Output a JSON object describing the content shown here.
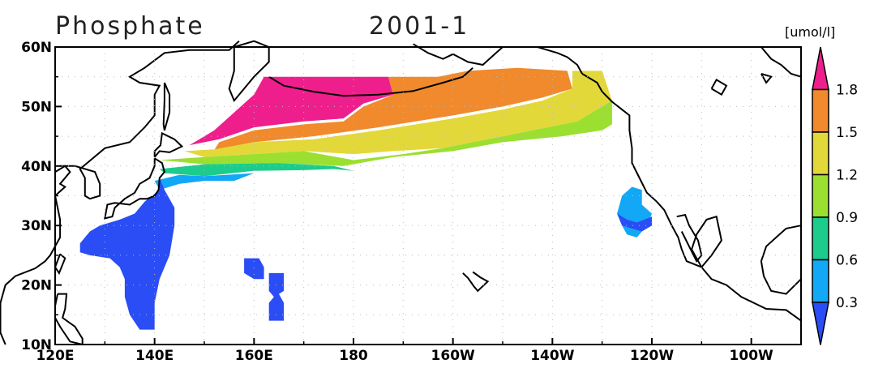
{
  "title": "Phosphate",
  "date": "2001-1",
  "units": "[umol/l]",
  "chart_data": {
    "type": "heatmap",
    "x_ticks": [
      "120E",
      "140E",
      "160E",
      "180",
      "160W",
      "140W",
      "120W",
      "100W"
    ],
    "y_ticks": [
      "10N",
      "20N",
      "30N",
      "40N",
      "50N",
      "60N"
    ],
    "x_range_lon_east": [
      120,
      270
    ],
    "y_range_lat": [
      10,
      60
    ],
    "grid": "dotted",
    "legend_position": "right",
    "colorbar": {
      "labels": [
        "0.3",
        "0.6",
        "0.9",
        "1.2",
        "1.5",
        "1.8"
      ],
      "colors": [
        "#2a4df5",
        "#12a8f5",
        "#1ccc8c",
        "#9bdf30",
        "#e3d83a",
        "#f08a2c",
        "#ee1f8c"
      ]
    },
    "regions": [
      {
        "value": "<0.3",
        "color": "#2a4df5",
        "lat": [
          12,
          38
        ],
        "lon": [
          125,
          141
        ]
      },
      {
        "value": "<0.3",
        "color": "#2a4df5",
        "lat": [
          14,
          22
        ],
        "lon": [
          163,
          166
        ]
      },
      {
        "value": "<0.3",
        "color": "#2a4df5",
        "lat": [
          21,
          24
        ],
        "lon": [
          158,
          162
        ]
      },
      {
        "value": "<0.3",
        "color": "#2a4df5",
        "lat": [
          28,
          36
        ],
        "lon": [
          233,
          240
        ]
      },
      {
        "value": "0.3-0.6",
        "color": "#12a8f5",
        "lat": [
          36,
          40
        ],
        "lon": [
          140,
          160
        ]
      },
      {
        "value": "0.6-0.9",
        "color": "#1ccc8c",
        "lat": [
          39,
          42
        ],
        "lon": [
          141,
          190
        ]
      },
      {
        "value": "0.9-1.2",
        "color": "#9bdf30",
        "lat": [
          41,
          44
        ],
        "lon": [
          141,
          230
        ]
      },
      {
        "value": "1.2-1.5",
        "color": "#e3d83a",
        "lat": [
          42,
          48
        ],
        "lon": [
          145,
          232
        ]
      },
      {
        "value": "1.5-1.8",
        "color": "#f08a2c",
        "lat": [
          46,
          56
        ],
        "lon": [
          165,
          225
        ]
      },
      {
        "value": ">1.8",
        "color": "#ee1f8c",
        "lat": [
          43,
          55
        ],
        "lon": [
          147,
          188
        ]
      }
    ]
  }
}
